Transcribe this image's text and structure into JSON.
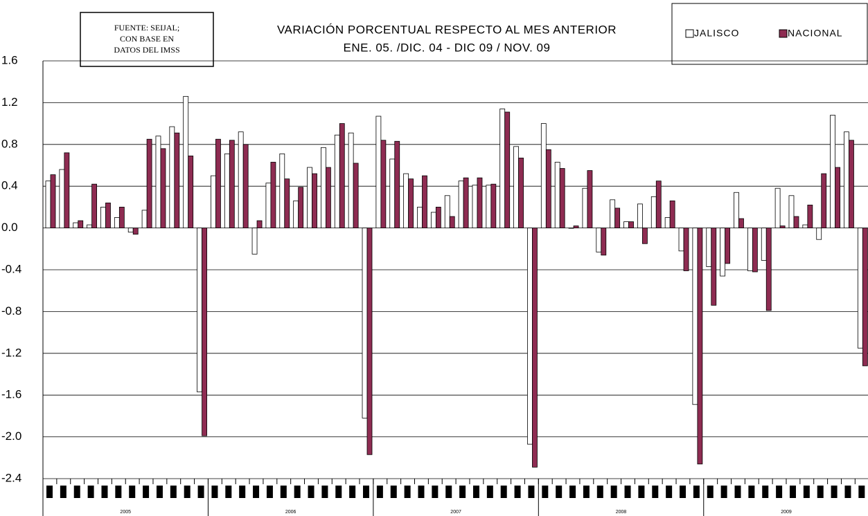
{
  "chart_data": {
    "type": "bar",
    "title_lines": [
      "VARIACIÓN PORCENTUAL RESPECTO AL MES ANTERIOR",
      "ENE. 05. /DIC. 04 - DIC 09 / NOV.  09"
    ],
    "source_lines": [
      "FUENTE: SEIJAL;",
      "CON BASE EN",
      "DATOS DEL IMSS"
    ],
    "categories": [
      null,
      null,
      null,
      null,
      null,
      null,
      null,
      null,
      null,
      null,
      null,
      null,
      null,
      null,
      null,
      null,
      null,
      null,
      null,
      null,
      null,
      null,
      null,
      null,
      null,
      null,
      null,
      null,
      null,
      null,
      null,
      null,
      null,
      null,
      null,
      null,
      null,
      null,
      null,
      null,
      null,
      null,
      null,
      null,
      null,
      null,
      null,
      null,
      null,
      null,
      null,
      null,
      null,
      null,
      null,
      null,
      null,
      null,
      null,
      null
    ],
    "year_labels": [
      "2005",
      "2006",
      "2007",
      "2008",
      "2009"
    ],
    "series": [
      {
        "name": "JALISCO",
        "color": "#ffffff",
        "values": [
          0.45,
          0.56,
          0.05,
          0.03,
          0.2,
          0.1,
          -0.04,
          0.17,
          0.88,
          0.97,
          1.26,
          -1.57,
          0.5,
          0.71,
          0.92,
          -0.25,
          0.43,
          0.71,
          0.26,
          0.58,
          0.77,
          0.89,
          0.91,
          -1.82,
          1.07,
          0.66,
          0.52,
          0.2,
          0.15,
          0.31,
          0.45,
          0.41,
          0.41,
          1.14,
          0.78,
          -2.07,
          1.0,
          0.63,
          0.0,
          0.38,
          -0.23,
          0.27,
          0.06,
          0.23,
          0.3,
          0.1,
          -0.22,
          -1.69,
          -0.37,
          -0.46,
          0.34,
          -0.41,
          -0.31,
          0.38,
          0.31,
          0.03,
          -0.11,
          1.08,
          0.92,
          -1.15
        ]
      },
      {
        "name": "NACIONAL",
        "color": "#8e2c52",
        "values": [
          0.51,
          0.72,
          0.07,
          0.42,
          0.24,
          0.2,
          -0.06,
          0.85,
          0.76,
          0.91,
          0.69,
          -1.99,
          0.85,
          0.84,
          0.8,
          0.07,
          0.63,
          0.47,
          0.39,
          0.52,
          0.58,
          1.0,
          0.62,
          -2.17,
          0.84,
          0.83,
          0.47,
          0.5,
          0.2,
          0.11,
          0.48,
          0.48,
          0.42,
          1.11,
          0.67,
          -2.29,
          0.75,
          0.57,
          0.02,
          0.55,
          -0.26,
          0.19,
          0.06,
          -0.15,
          0.45,
          0.26,
          -0.41,
          -2.26,
          -0.74,
          -0.34,
          0.09,
          -0.42,
          -0.79,
          0.02,
          0.11,
          0.22,
          0.52,
          0.58,
          0.84,
          -1.32
        ]
      }
    ],
    "ylim": [
      -2.4,
      1.6
    ],
    "yticks": [
      1.6,
      1.2,
      0.8,
      0.4,
      {
        "value": 0,
        "label": "0.0"
      },
      -0.4,
      -0.8,
      -1.2,
      -1.6,
      {
        "value": -2,
        "label": "-2.0"
      },
      -2.4
    ],
    "grid": true,
    "legend": "top-right"
  }
}
